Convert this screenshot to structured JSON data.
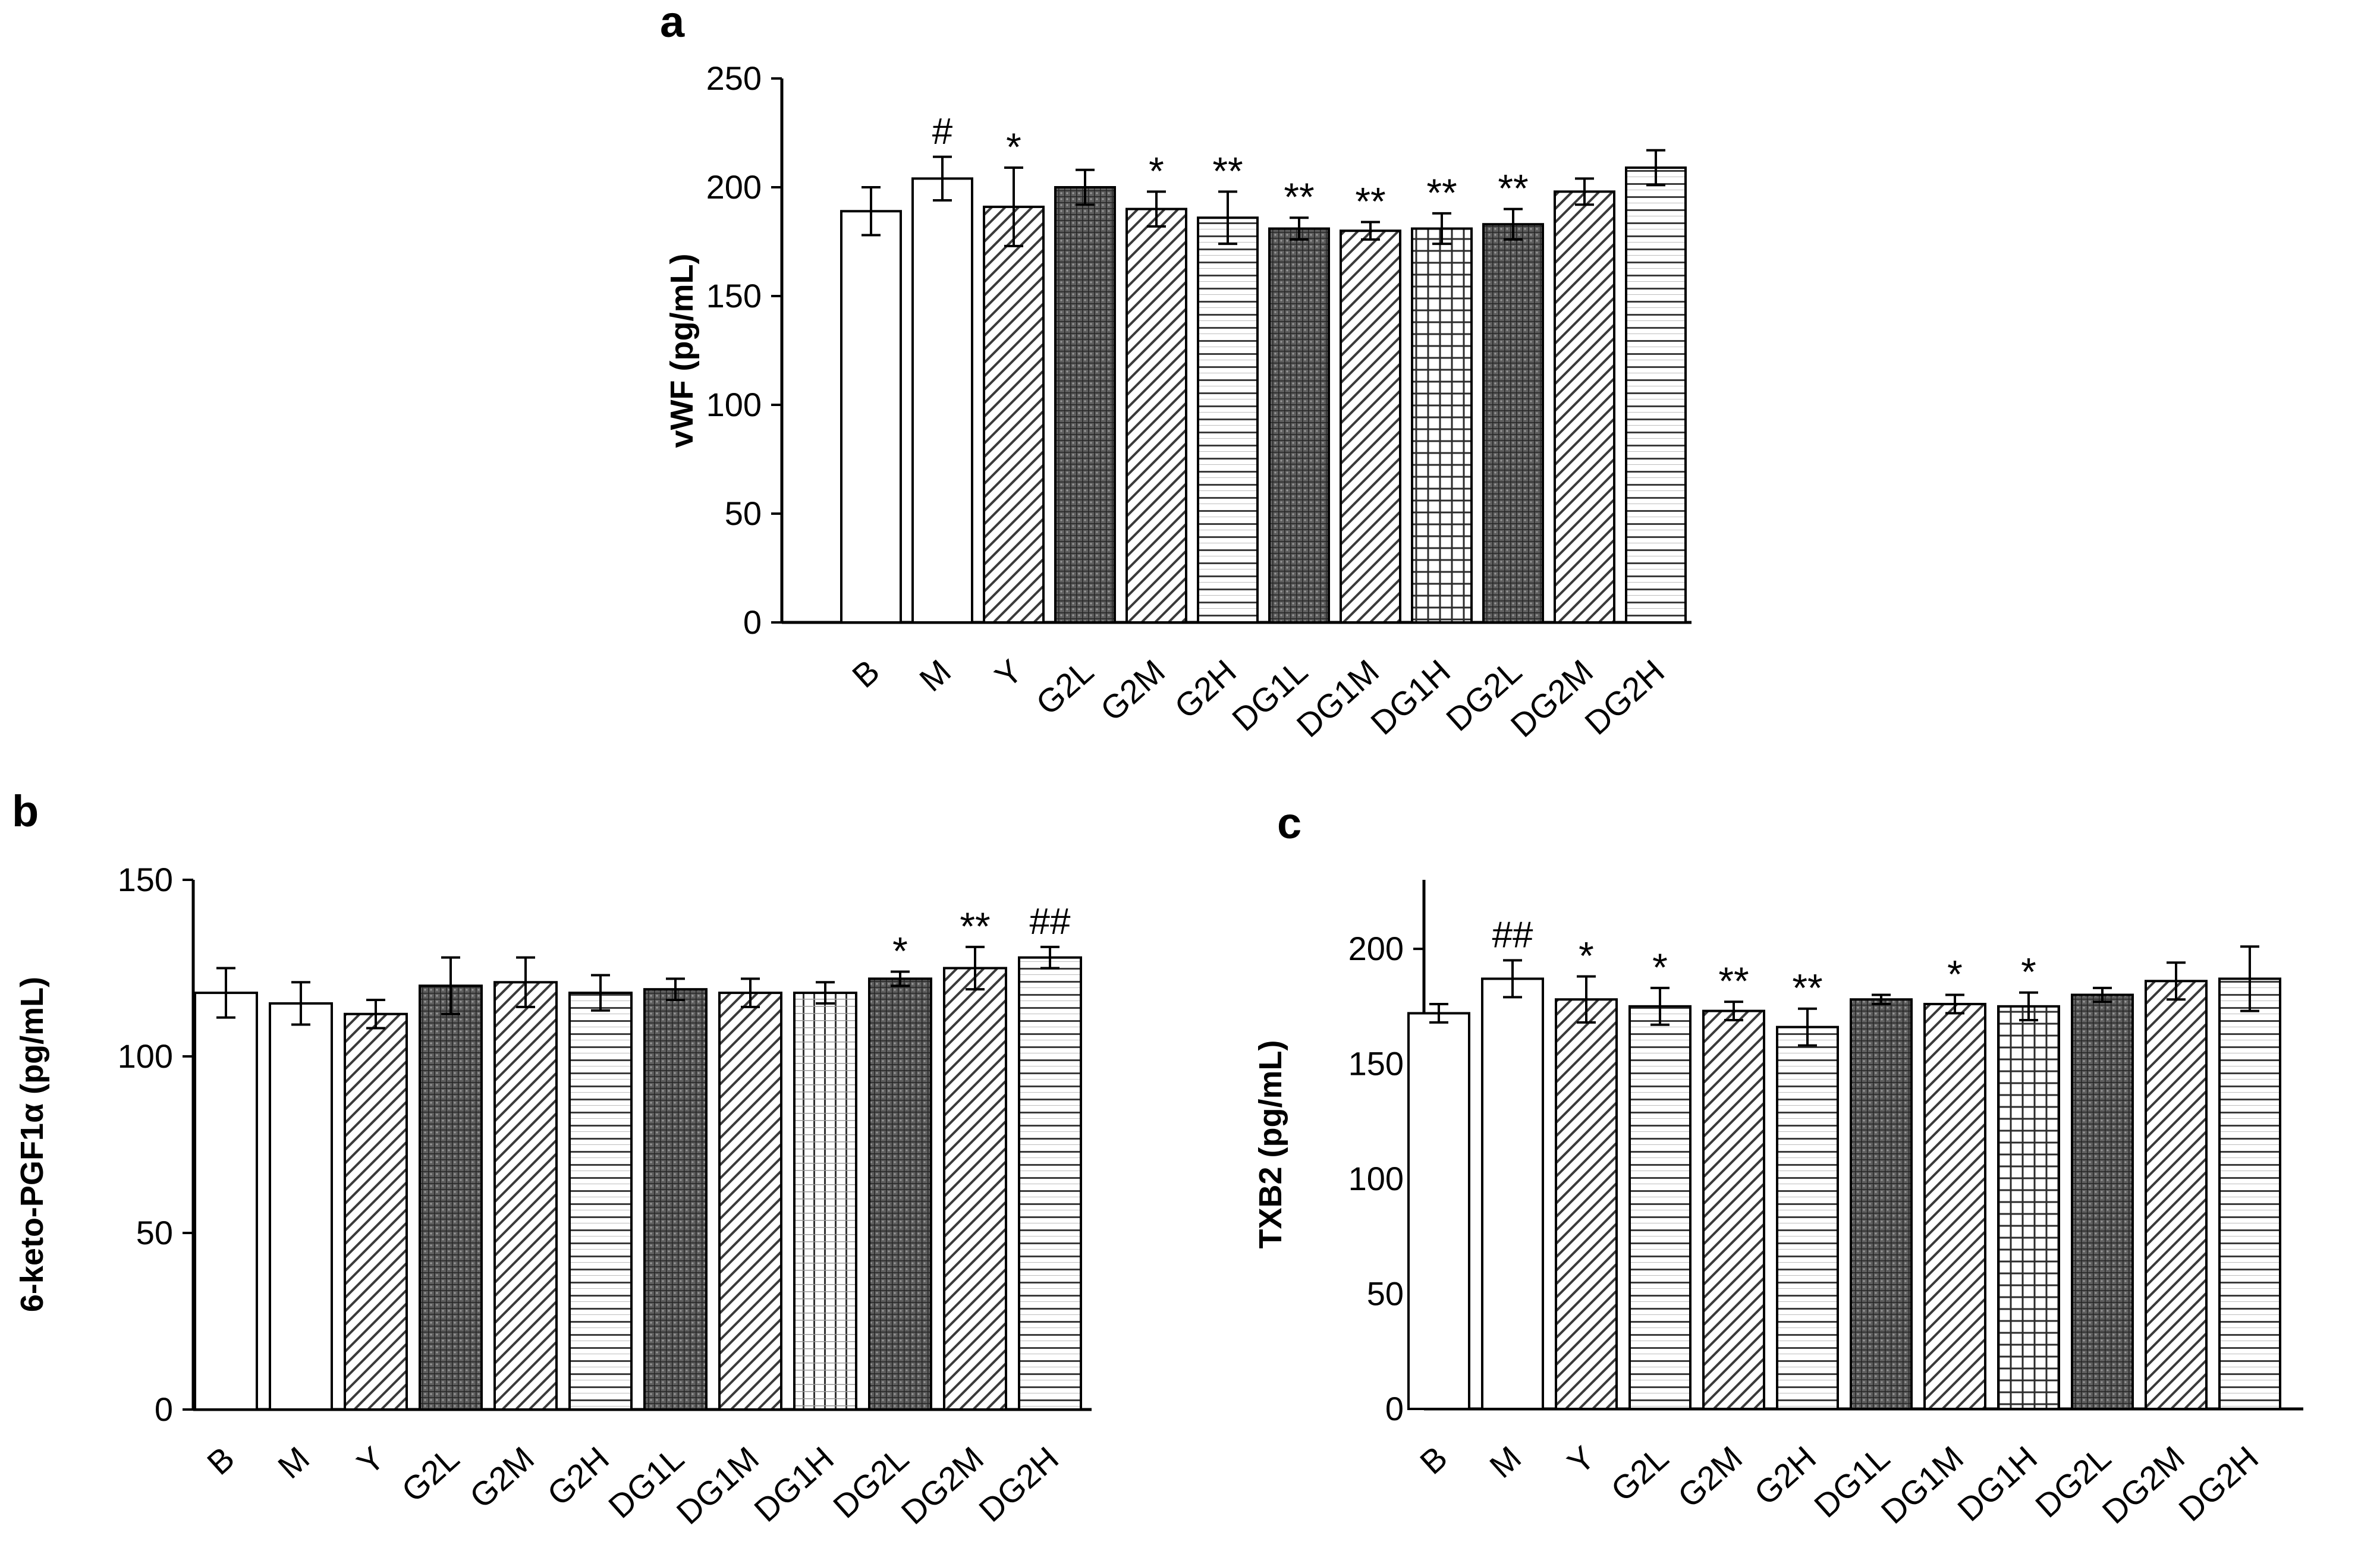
{
  "chart_data": [
    {
      "panel": "a",
      "type": "bar",
      "categories": [
        "B",
        "M",
        "Y",
        "G2L",
        "G2M",
        "G2H",
        "DG1L",
        "DG1M",
        "DG1H",
        "DG2L",
        "DG2M",
        "DG2H"
      ],
      "values": [
        189,
        204,
        191,
        200,
        190,
        186,
        181,
        180,
        181,
        183,
        198,
        209
      ],
      "errors": [
        11,
        10,
        18,
        8,
        8,
        12,
        5,
        4,
        7,
        7,
        6,
        8
      ],
      "annotations": [
        "",
        "#",
        "*",
        "",
        "*",
        "**",
        "**",
        "**",
        "**",
        "**",
        "",
        ""
      ],
      "patterns": [
        "white",
        "white",
        "diag",
        "grid",
        "diag",
        "hstripe",
        "grid",
        "diag",
        "check",
        "grid",
        "diag",
        "hstripe"
      ],
      "title": "a",
      "xlabel": "",
      "ylabel": "vWF (pg/mL)",
      "ylim": [
        0,
        250
      ],
      "yticks": [
        "0",
        "50",
        "100",
        "150",
        "200",
        "250"
      ]
    },
    {
      "panel": "b",
      "type": "bar",
      "categories": [
        "B",
        "M",
        "Y",
        "G2L",
        "G2M",
        "G2H",
        "DG1L",
        "DG1M",
        "DG1H",
        "DG2L",
        "DG2M",
        "DG2H"
      ],
      "values": [
        118,
        115,
        112,
        120,
        121,
        118,
        119,
        118,
        118,
        122,
        125,
        128
      ],
      "errors": [
        7,
        6,
        4,
        8,
        7,
        5,
        3,
        4,
        3,
        2,
        6,
        3
      ],
      "annotations": [
        "",
        "",
        "",
        "",
        "",
        "",
        "",
        "",
        "",
        "*",
        "**",
        "##"
      ],
      "patterns": [
        "white",
        "white",
        "diag",
        "grid",
        "diag",
        "hstripe",
        "grid",
        "diag",
        "vstripe",
        "grid",
        "diag",
        "hstripe"
      ],
      "title": "b",
      "xlabel": "",
      "ylabel": "6-keto-PGF1α (pg/mL)",
      "ylim": [
        0,
        150
      ],
      "yticks": [
        "0",
        "50",
        "100",
        "150"
      ]
    },
    {
      "panel": "c",
      "type": "bar",
      "categories": [
        "B",
        "M",
        "Y",
        "G2L",
        "G2M",
        "G2H",
        "DG1L",
        "DG1M",
        "DG1H",
        "DG2L",
        "DG2M",
        "DG2H"
      ],
      "values": [
        172,
        187,
        178,
        175,
        173,
        166,
        178,
        176,
        175,
        180,
        186,
        187
      ],
      "errors": [
        4,
        8,
        10,
        8,
        4,
        8,
        2,
        4,
        6,
        3,
        8,
        14
      ],
      "annotations": [
        "",
        "##",
        "*",
        "*",
        "**",
        "**",
        "",
        "*",
        "*",
        "",
        "",
        ""
      ],
      "patterns": [
        "white",
        "white",
        "diag",
        "hstripe",
        "diag",
        "hstripe",
        "grid",
        "diag",
        "check",
        "grid",
        "diag",
        "hstripe"
      ],
      "title": "c",
      "xlabel": "",
      "ylabel": "TXB2 (pg/mL)",
      "ylim": [
        0,
        230
      ],
      "yticks": [
        "0",
        "50",
        "100",
        "150",
        "200"
      ]
    }
  ]
}
